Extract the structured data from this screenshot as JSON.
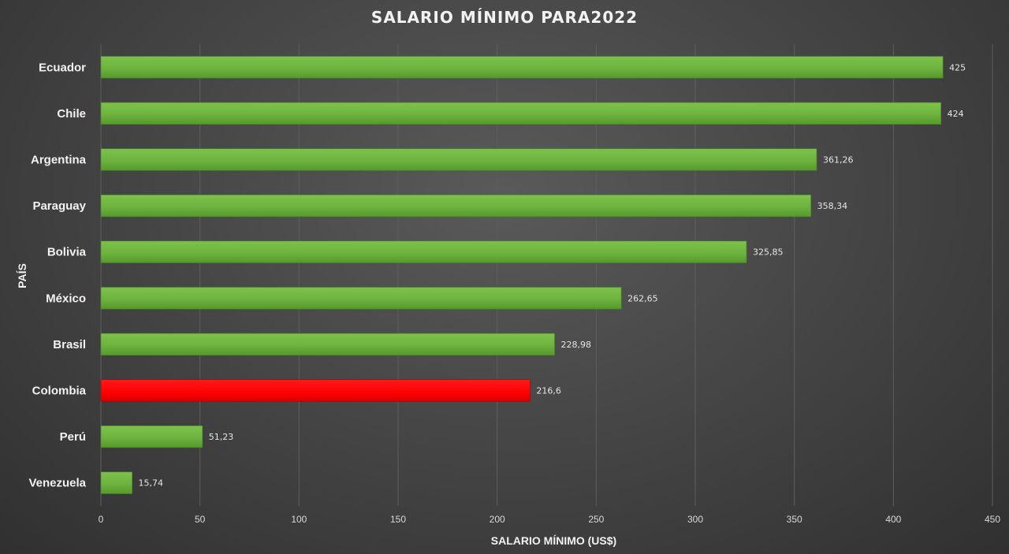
{
  "chart_data": {
    "type": "bar",
    "orientation": "horizontal",
    "title": "SALARIO MÍNIMO PARA2022",
    "xlabel": "SALARIO MÍNIMO (US$)",
    "ylabel": "PAÍS",
    "xlim": [
      0,
      450
    ],
    "xticks": [
      0,
      50,
      100,
      150,
      200,
      250,
      300,
      350,
      400,
      450
    ],
    "grid": true,
    "categories": [
      "Ecuador",
      "Chile",
      "Argentina",
      "Paraguay",
      "Bolivia",
      "México",
      "Brasil",
      "Colombia",
      "Perú",
      "Venezuela"
    ],
    "values": [
      425,
      424,
      361.26,
      358.34,
      325.85,
      262.65,
      228.98,
      216.6,
      51.23,
      15.74
    ],
    "data_labels": [
      "425",
      "424",
      "361,26",
      "358,34",
      "325,85",
      "262,65",
      "228,98",
      "216,6",
      "51,23",
      "15,74"
    ],
    "bar_color": "#6db33f",
    "highlight_category": "Colombia",
    "highlight_color": "#ff0000"
  }
}
